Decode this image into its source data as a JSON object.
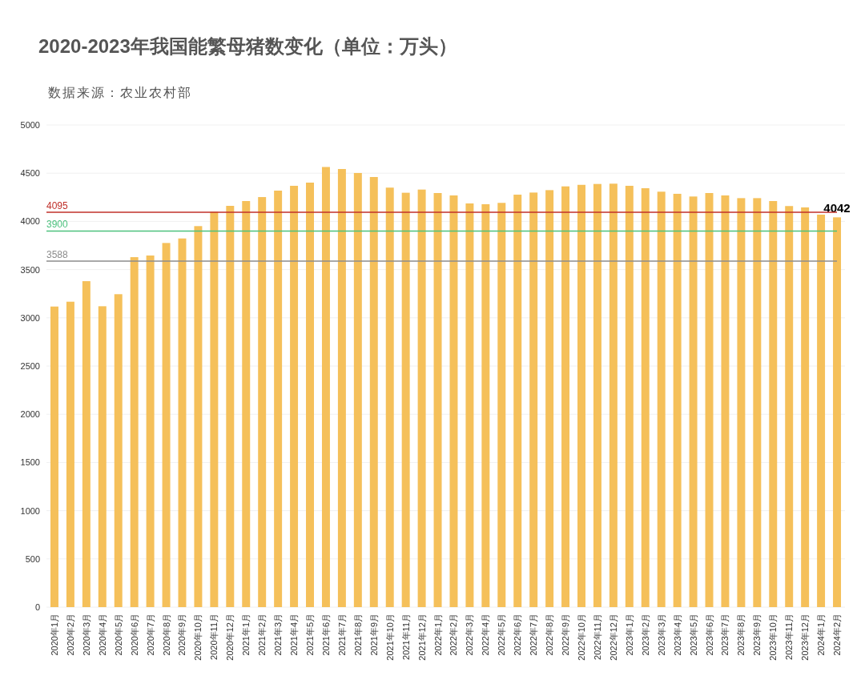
{
  "chart_data": {
    "type": "bar",
    "title": "2020-2023年我国能繁母猪数变化（单位：万头）",
    "annotations": [
      "数据来源：农业农村部"
    ],
    "categories": [
      "2020年1月",
      "2020年2月",
      "2020年3月",
      "2020年4月",
      "2020年5月",
      "2020年6月",
      "2020年7月",
      "2020年8月",
      "2020年9月",
      "2020年10月",
      "2020年11月",
      "2020年12月",
      "2021年1月",
      "2021年2月",
      "2021年3月",
      "2021年4月",
      "2021年5月",
      "2021年6月",
      "2021年7月",
      "2021年8月",
      "2021年9月",
      "2021年10月",
      "2021年11月",
      "2021年12月",
      "2022年1月",
      "2022年2月",
      "2022年3月",
      "2022年4月",
      "2022年5月",
      "2022年6月",
      "2022年7月",
      "2022年8月",
      "2022年9月",
      "2022年10月",
      "2022年11月",
      "2022年12月",
      "2023年1月",
      "2023年2月",
      "2023年3月",
      "2023年4月",
      "2023年5月",
      "2023年6月",
      "2023年7月",
      "2023年8月",
      "2023年9月",
      "2023年10月",
      "2023年11月",
      "2023年12月",
      "2024年1月",
      "2024年2月"
    ],
    "values": [
      3117,
      3167,
      3380,
      3120,
      3245,
      3629,
      3646,
      3776,
      3823,
      3951,
      4100,
      4161,
      4211,
      4252,
      4319,
      4369,
      4402,
      4564,
      4543,
      4502,
      4460,
      4350,
      4297,
      4330,
      4294,
      4269,
      4186,
      4178,
      4192,
      4277,
      4299,
      4324,
      4363,
      4379,
      4388,
      4391,
      4369,
      4344,
      4308,
      4286,
      4258,
      4294,
      4269,
      4241,
      4241,
      4211,
      4159,
      4145,
      4070,
      4042
    ],
    "value_labels": [
      null,
      null,
      null,
      null,
      null,
      null,
      null,
      null,
      null,
      null,
      null,
      null,
      null,
      null,
      null,
      null,
      null,
      null,
      null,
      null,
      null,
      null,
      null,
      null,
      null,
      null,
      null,
      null,
      null,
      null,
      null,
      null,
      null,
      null,
      null,
      null,
      null,
      null,
      null,
      null,
      null,
      null,
      null,
      null,
      null,
      null,
      null,
      null,
      null,
      "4042"
    ],
    "color": "#f5c05a",
    "ylim": [
      0,
      5000
    ],
    "yticks": [
      0,
      500,
      1000,
      1500,
      2000,
      2500,
      3000,
      3500,
      4000,
      4500,
      5000
    ],
    "grid": "y",
    "ref_lines": [
      {
        "axis": "y",
        "value": 4095,
        "label": "4095",
        "color": "#c0302a"
      },
      {
        "axis": "y",
        "value": 3900,
        "label": "3900",
        "color": "#4cc17e"
      },
      {
        "axis": "y",
        "value": 3588,
        "label": "3588",
        "color": "#8c8c8c"
      }
    ]
  }
}
